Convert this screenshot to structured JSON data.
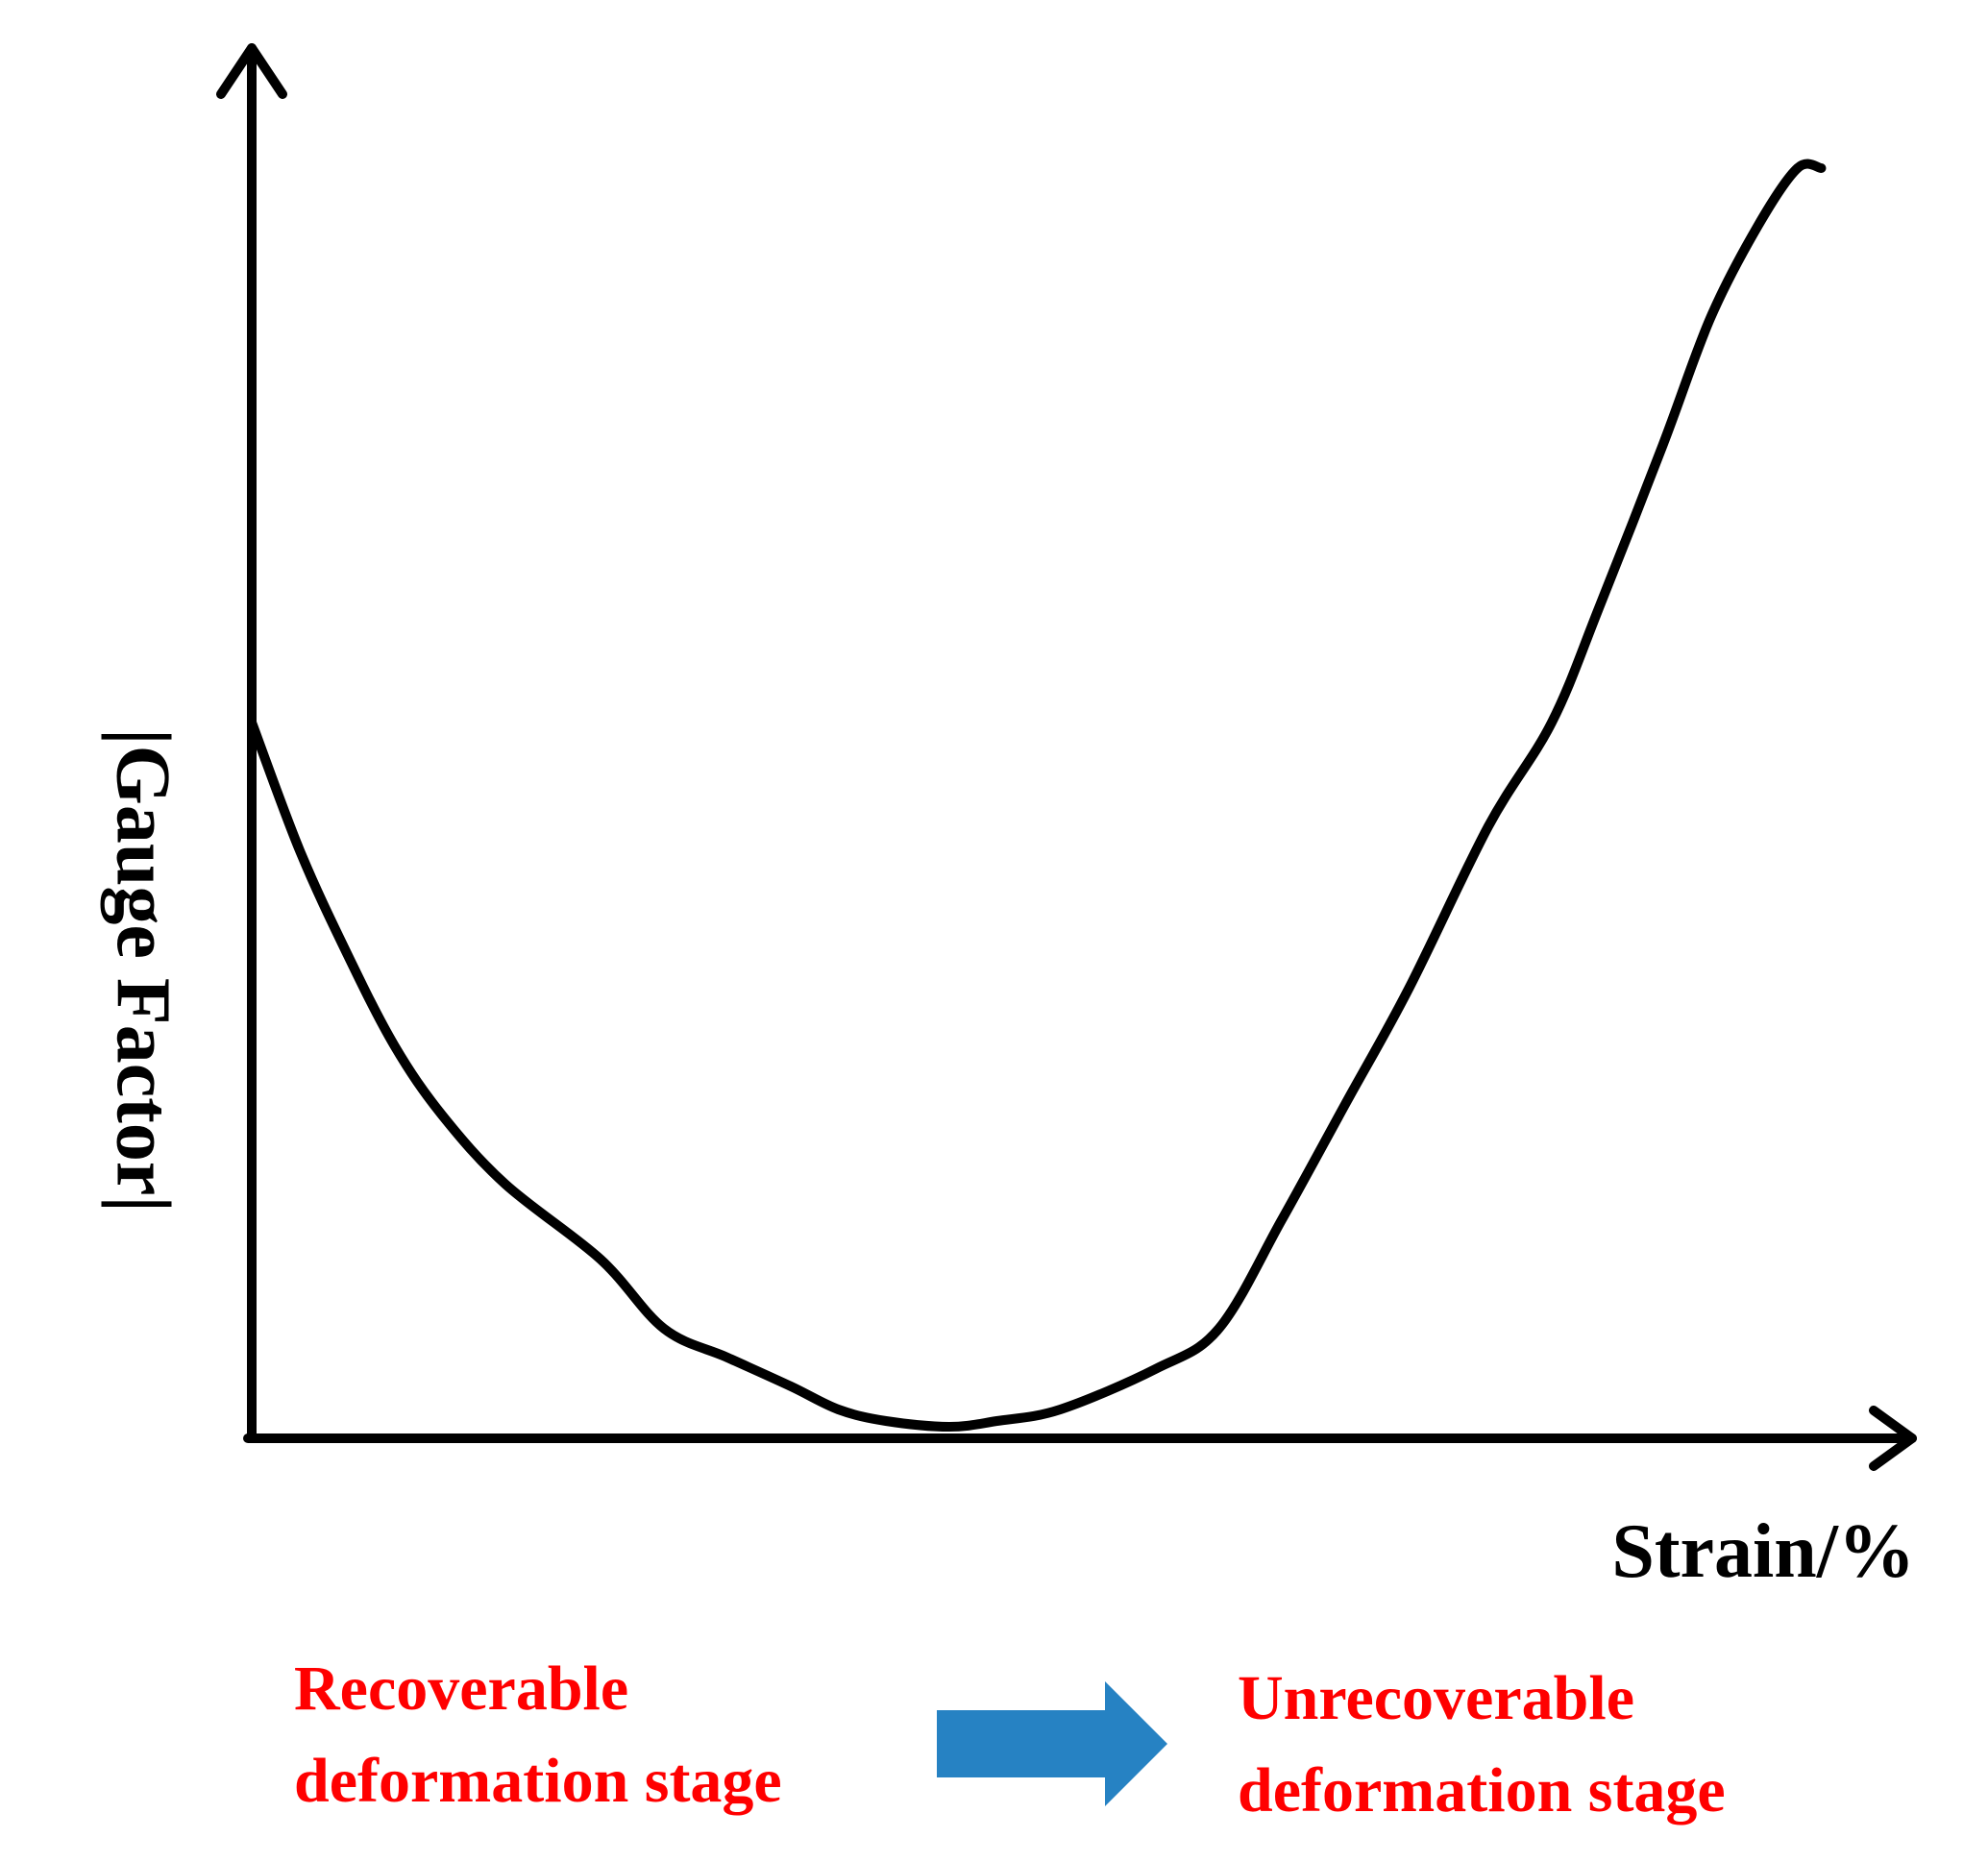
{
  "chart_data": {
    "type": "line",
    "xlabel": "Strain/%",
    "ylabel": "|Gauge Factor|",
    "ticks": "none",
    "grid": false,
    "series": [
      {
        "x": [
          0.0,
          0.03,
          0.06,
          0.09,
          0.12,
          0.16,
          0.22,
          0.26,
          0.3,
          0.34,
          0.37,
          0.4,
          0.44,
          0.47,
          0.51,
          0.57,
          0.61,
          0.65,
          0.69,
          0.73,
          0.78,
          0.82,
          0.85,
          0.89,
          0.92,
          0.95,
          0.975,
          0.99
        ],
        "y": [
          0.62,
          0.51,
          0.42,
          0.34,
          0.28,
          0.22,
          0.155,
          0.095,
          0.07,
          0.045,
          0.025,
          0.015,
          0.01,
          0.015,
          0.025,
          0.06,
          0.095,
          0.19,
          0.29,
          0.39,
          0.53,
          0.62,
          0.72,
          0.86,
          0.97,
          1.05,
          1.1,
          1.1
        ]
      }
    ]
  },
  "annotations": {
    "left_stage": [
      "Recoverable",
      "deformation stage"
    ],
    "right_stage": [
      "Unrecoverable",
      "deformation stage"
    ],
    "arrow_color": "#2682c3",
    "stage_text_color": "#ff0000"
  }
}
